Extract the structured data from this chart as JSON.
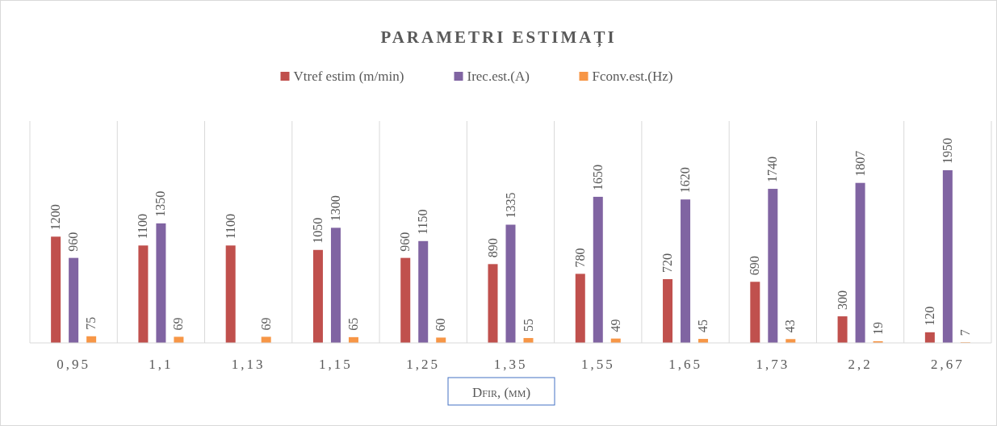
{
  "chart_data": {
    "type": "bar",
    "title": "PARAMETRI ESTIMAȚI",
    "xlabel": "Dfir, (mm)",
    "categories": [
      "0,95",
      "1,1",
      "1,13",
      "1,15",
      "1,25",
      "1,35",
      "1,55",
      "1,65",
      "1,73",
      "2,2",
      "2,67"
    ],
    "series": [
      {
        "name": "Vtref estim (m/min)",
        "color": "#c0504d",
        "values": [
          1200,
          1100,
          1100,
          1050,
          960,
          890,
          780,
          720,
          690,
          300,
          120
        ]
      },
      {
        "name": "Irec.est.(A)",
        "color": "#8064a2",
        "values": [
          960,
          1350,
          null,
          1300,
          1150,
          1335,
          1650,
          1620,
          1740,
          1807,
          1950
        ]
      },
      {
        "name": "Fconv.est.(Hz)",
        "color": "#f79646",
        "values": [
          75,
          69,
          69,
          65,
          60,
          55,
          49,
          45,
          43,
          19,
          7
        ]
      }
    ],
    "data_labels": true,
    "grid": "x",
    "legend": "top"
  }
}
